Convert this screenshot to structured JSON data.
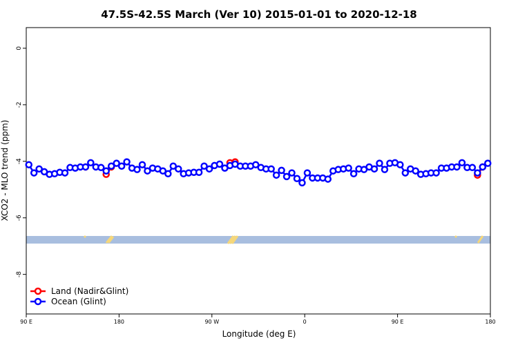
{
  "chart_data": {
    "type": "line",
    "title": "47.5S-42.5S March (Ver 10)   2015-01-01 to 2020-12-18",
    "x_label": "Longitude (deg E)",
    "y_label": "XCO2 - MLO trend (ppm)",
    "x": [
      92.5,
      97.5,
      102.5,
      107.5,
      112.5,
      117.5,
      122.5,
      127.5,
      132.5,
      137.5,
      142.5,
      147.5,
      152.5,
      157.5,
      162.5,
      167.5,
      172.5,
      177.5,
      182.5,
      187.5,
      192.5,
      197.5,
      202.5,
      207.5,
      212.5,
      217.5,
      222.5,
      227.5,
      232.5,
      237.5,
      242.5,
      247.5,
      252.5,
      257.5,
      262.5,
      267.5,
      272.5,
      277.5,
      282.5,
      287.5,
      292.5,
      297.5,
      302.5,
      307.5,
      312.5,
      317.5,
      322.5,
      327.5,
      332.5,
      337.5,
      342.5,
      347.5,
      352.5,
      357.5,
      362.5,
      367.5,
      372.5,
      377.5,
      382.5,
      387.5,
      392.5,
      397.5,
      402.5,
      407.5,
      412.5,
      417.5,
      422.5,
      427.5,
      432.5,
      437.5,
      442.5,
      447.5,
      452.5,
      457.5,
      462.5,
      467.5,
      472.5,
      477.5,
      482.5,
      487.5,
      492.5,
      497.5,
      502.5,
      507.5,
      512.5,
      517.5,
      522.5,
      527.5,
      532.5,
      537.5
    ],
    "series": [
      {
        "name": "Land (Nadir&Glint)",
        "color": "#ff0000",
        "values": [
          null,
          null,
          null,
          null,
          null,
          null,
          null,
          null,
          null,
          null,
          null,
          -4.2,
          null,
          null,
          null,
          -4.46,
          -4.2,
          null,
          null,
          null,
          null,
          null,
          null,
          null,
          null,
          null,
          null,
          null,
          null,
          null,
          null,
          null,
          null,
          null,
          null,
          null,
          null,
          null,
          null,
          -4.05,
          -4.02,
          null,
          null,
          null,
          null,
          null,
          null,
          null,
          null,
          null,
          null,
          null,
          null,
          null,
          null,
          null,
          null,
          null,
          null,
          null,
          null,
          null,
          null,
          null,
          null,
          null,
          null,
          null,
          null,
          null,
          null,
          null,
          null,
          null,
          null,
          null,
          null,
          null,
          null,
          null,
          null,
          null,
          null,
          null,
          null,
          null,
          null,
          -4.49,
          -4.2,
          null
        ]
      },
      {
        "name": "Ocean (Glint)",
        "color": "#0000ff",
        "values": [
          -4.12,
          -4.41,
          -4.27,
          -4.37,
          -4.46,
          -4.44,
          -4.39,
          -4.41,
          -4.22,
          -4.24,
          -4.2,
          -4.2,
          -4.05,
          -4.2,
          -4.22,
          -4.34,
          -4.17,
          -4.07,
          -4.17,
          -4.02,
          -4.24,
          -4.29,
          -4.12,
          -4.34,
          -4.24,
          -4.27,
          -4.34,
          -4.44,
          -4.17,
          -4.27,
          -4.44,
          -4.41,
          -4.39,
          -4.39,
          -4.17,
          -4.27,
          -4.15,
          -4.1,
          -4.24,
          -4.15,
          -4.1,
          -4.17,
          -4.17,
          -4.17,
          -4.12,
          -4.22,
          -4.27,
          -4.27,
          -4.49,
          -4.32,
          -4.54,
          -4.41,
          -4.61,
          -4.76,
          -4.41,
          -4.59,
          -4.59,
          -4.59,
          -4.63,
          -4.34,
          -4.29,
          -4.27,
          -4.24,
          -4.44,
          -4.27,
          -4.29,
          -4.2,
          -4.27,
          -4.07,
          -4.29,
          -4.07,
          -4.05,
          -4.12,
          -4.41,
          -4.27,
          -4.34,
          -4.46,
          -4.44,
          -4.41,
          -4.41,
          -4.24,
          -4.24,
          -4.2,
          -4.2,
          -4.05,
          -4.22,
          -4.22,
          -4.41,
          -4.2,
          -4.07
        ]
      }
    ],
    "xlim": [
      90,
      540
    ],
    "xticks": [
      {
        "value": 90,
        "label": "90 E"
      },
      {
        "value": 180,
        "label": "180"
      },
      {
        "value": 270,
        "label": "90 W"
      },
      {
        "value": 360,
        "label": "0"
      },
      {
        "value": 450,
        "label": "90 E"
      },
      {
        "value": 540,
        "label": "180"
      }
    ],
    "ylim": [
      -9.4,
      0.73
    ],
    "yticks": [
      0,
      -2,
      -4,
      -6,
      -8
    ],
    "legend": "bottom-left"
  }
}
